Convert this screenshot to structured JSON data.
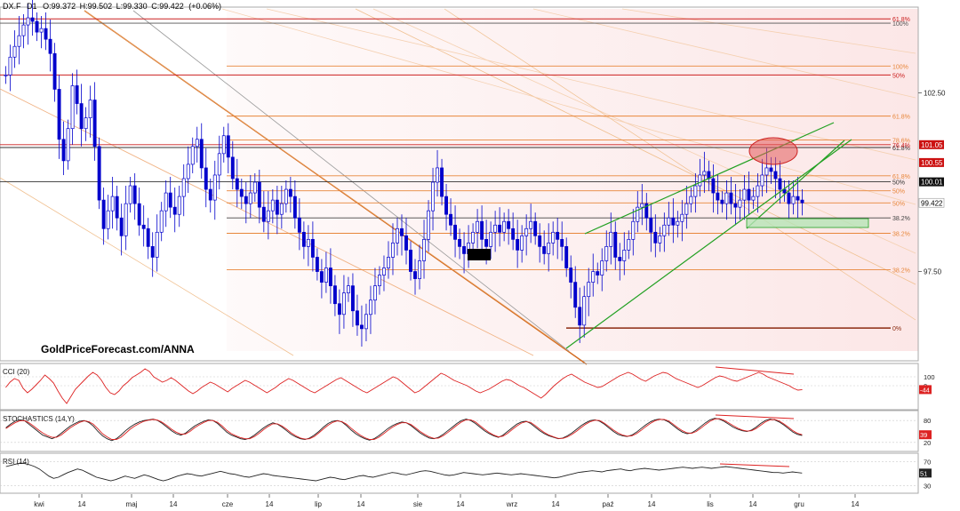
{
  "header": {
    "symbol": "DX.F",
    "interval": "D1",
    "open": "O:99.372",
    "high": "H:99.502",
    "low": "L:99.330",
    "close": "C:99.422",
    "change": "(+0.06%)"
  },
  "watermark": "GoldPriceForecast.com/ANNA",
  "colors": {
    "up": "#0000cc",
    "down": "#0000cc",
    "fib": "#e8863a",
    "resistance": "#cc2020",
    "channel": "#22a022",
    "cci": "#dd2222",
    "stoch_k": "#222222",
    "stoch_d": "#dd2222",
    "rsi": "#222222"
  },
  "chart_data": [
    {
      "type": "candlestick",
      "y_ticks": [
        "102.50",
        "97.50"
      ],
      "y_range": [
        95.3,
        104.8
      ],
      "x_tick_labels": [
        "kwi",
        "14",
        "maj",
        "14",
        "cze",
        "14",
        "lip",
        "14",
        "sie",
        "14",
        "wrz",
        "14",
        "paź",
        "14",
        "lis",
        "14",
        "gru",
        "14"
      ],
      "close_series": [
        103.0,
        103.5,
        103.8,
        104.1,
        104.4,
        104.6,
        104.5,
        104.2,
        104.3,
        104.0,
        103.6,
        102.6,
        101.2,
        100.6,
        101.5,
        102.7,
        102.2,
        101.5,
        101.8,
        102.3,
        101.0,
        99.5,
        98.7,
        99.2,
        99.6,
        99.0,
        98.5,
        99.4,
        99.9,
        99.4,
        98.8,
        98.7,
        98.2,
        97.9,
        98.6,
        99.2,
        99.7,
        99.3,
        99.1,
        99.6,
        100.1,
        100.5,
        101.0,
        101.2,
        100.4,
        99.8,
        99.5,
        100.2,
        100.8,
        101.3,
        100.7,
        100.1,
        99.8,
        99.6,
        99.4,
        99.7,
        100.0,
        99.3,
        98.9,
        99.2,
        99.5,
        99.1,
        99.4,
        99.8,
        99.6,
        99.0,
        98.6,
        98.2,
        98.4,
        97.9,
        97.5,
        97.2,
        97.6,
        97.1,
        96.6,
        96.3,
        96.9,
        97.1,
        96.4,
        96.0,
        95.9,
        96.3,
        96.7,
        97.1,
        97.4,
        97.6,
        97.9,
        98.3,
        98.7,
        98.5,
        98.1,
        97.5,
        97.3,
        97.8,
        98.4,
        99.2,
        100.0,
        100.4,
        99.6,
        99.1,
        98.8,
        98.4,
        98.2,
        98.0,
        98.3,
        98.6,
        98.9,
        98.4,
        98.2,
        98.6,
        98.8,
        98.6,
        98.9,
        98.7,
        98.4,
        98.1,
        98.5,
        98.7,
        98.9,
        98.5,
        98.2,
        98.0,
        98.3,
        98.6,
        98.4,
        98.2,
        97.6,
        97.2,
        96.5,
        96.0,
        96.8,
        97.2,
        97.5,
        97.4,
        97.8,
        98.2,
        98.6,
        97.9,
        97.8,
        98.1,
        98.4,
        98.9,
        99.3,
        99.4,
        99.0,
        98.6,
        98.3,
        98.5,
        98.8,
        99.0,
        98.8,
        98.9,
        99.1,
        99.4,
        99.6,
        99.9,
        100.2,
        100.3,
        100.1,
        99.7,
        99.5,
        99.4,
        99.7,
        99.4,
        99.3,
        99.5,
        99.8,
        99.5,
        99.6,
        99.9,
        100.2,
        100.4,
        100.3,
        100.1,
        99.8,
        99.7,
        99.4,
        99.6,
        99.5,
        99.422
      ],
      "horizontal_levels": [
        {
          "label": "100%",
          "value": 104.45,
          "color": "#555555"
        },
        {
          "label": "61.8%",
          "value": 104.57,
          "color": "#cc2020"
        },
        {
          "label": "100%",
          "value": 103.25,
          "color": "#e8863a"
        },
        {
          "label": "50%",
          "value": 103.0,
          "color": "#cc2020"
        },
        {
          "label": "61.8%",
          "value": 101.85,
          "color": "#e8863a"
        },
        {
          "label": "78.6%",
          "value": 101.18,
          "color": "#e8863a"
        },
        {
          "label": "61.8%",
          "value": 100.97,
          "color": "#333333"
        },
        {
          "label": "76.4%",
          "value": 101.05,
          "color": "#cc2020"
        },
        {
          "label": "61.8%",
          "value": 100.18,
          "color": "#e8863a"
        },
        {
          "label": "50%",
          "value": 100.01,
          "color": "#333333"
        },
        {
          "label": "50%",
          "value": 99.76,
          "color": "#e8863a"
        },
        {
          "label": "50%",
          "value": 99.42,
          "color": "#e8863a"
        },
        {
          "label": "38.2%",
          "value": 99.0,
          "color": "#444444"
        },
        {
          "label": "38.2%",
          "value": 98.57,
          "color": "#e8863a"
        },
        {
          "label": "38.2%",
          "value": 97.55,
          "color": "#e8863a"
        },
        {
          "label": "0%",
          "value": 95.92,
          "color": "#8b2a10"
        }
      ],
      "price_tags": [
        {
          "label": "101.05",
          "value": 101.05,
          "bg": "#cc1111"
        },
        {
          "label": "100.55",
          "value": 100.55,
          "bg": "#cc1111"
        },
        {
          "label": "100.01",
          "value": 100.01,
          "bg": "#111111"
        },
        {
          "label": "99.422",
          "value": 99.422,
          "bg": "#ffffff"
        }
      ]
    },
    {
      "type": "line",
      "title": "CCI (20)",
      "y_ticks": [
        "100",
        "0"
      ],
      "last_value": "-44",
      "y_range": [
        -250,
        220
      ],
      "values": [
        -20,
        40,
        80,
        60,
        -30,
        -80,
        -40,
        10,
        60,
        120,
        80,
        30,
        -60,
        -140,
        -200,
        -120,
        -40,
        10,
        60,
        110,
        150,
        120,
        60,
        -20,
        -80,
        -100,
        -60,
        0,
        40,
        90,
        120,
        150,
        190,
        160,
        100,
        70,
        40,
        60,
        90,
        60,
        20,
        -20,
        -60,
        -90,
        -60,
        -20,
        10,
        40,
        20,
        -10,
        -40,
        -70,
        -30,
        0,
        30,
        60,
        40,
        10,
        -20,
        -50,
        -80,
        -50,
        -20,
        20,
        50,
        80,
        60,
        30,
        0,
        -30,
        -60,
        -80,
        -50,
        -20,
        10,
        40,
        70,
        90,
        60,
        30,
        0,
        -30,
        -60,
        -80,
        -50,
        -20,
        10,
        40,
        70,
        100,
        80,
        40,
        0,
        -40,
        -80,
        -60,
        -20,
        20,
        60,
        100,
        140,
        120,
        90,
        60,
        40,
        20,
        0,
        -30,
        -60,
        -80,
        -60,
        -40,
        -10,
        20,
        50,
        70,
        60,
        30,
        0,
        -20,
        -50,
        -80,
        -110,
        -140,
        -100,
        -50,
        0,
        40,
        80,
        110,
        130,
        100,
        70,
        40,
        20,
        0,
        -20,
        -10,
        20,
        50,
        80,
        110,
        130,
        150,
        130,
        100,
        70,
        50,
        80,
        110,
        130,
        150,
        140,
        110,
        80,
        60,
        40,
        20,
        0,
        -20,
        0,
        30,
        60,
        90,
        110,
        100,
        80,
        60,
        50,
        70,
        90,
        110,
        130,
        150,
        130,
        100,
        80,
        60,
        40,
        20,
        0,
        -30,
        -50,
        -44
      ]
    },
    {
      "type": "line",
      "title": "STOCHASTICS (14,Y)",
      "y_ticks": [
        "80",
        "20"
      ],
      "last_value": "39",
      "y_range": [
        0,
        100
      ],
      "k": [
        60,
        70,
        78,
        82,
        80,
        70,
        60,
        50,
        40,
        35,
        30,
        35,
        45,
        55,
        65,
        72,
        78,
        80,
        75,
        65,
        50,
        38,
        30,
        25,
        30,
        40,
        52,
        62,
        70,
        76,
        80,
        82,
        84,
        80,
        72,
        62,
        52,
        44,
        40,
        45,
        55,
        65,
        72,
        78,
        82,
        80,
        72,
        60,
        48,
        40,
        35,
        30,
        28,
        32,
        40,
        50,
        60,
        68,
        74,
        70,
        62,
        52,
        42,
        35,
        30,
        28,
        32,
        40,
        50,
        62,
        72,
        78,
        80,
        76,
        66,
        54,
        44,
        36,
        30,
        26,
        30,
        38,
        48,
        58,
        66,
        72,
        76,
        74,
        66,
        56,
        46,
        38,
        32,
        30,
        34,
        42,
        52,
        62,
        72,
        80,
        84,
        80,
        72,
        62,
        52,
        44,
        38,
        34,
        40,
        50,
        60,
        70,
        76,
        78,
        72,
        62,
        52,
        44,
        38,
        34,
        30,
        32,
        38,
        46,
        56,
        66,
        74,
        80,
        82,
        78,
        70,
        60,
        50,
        42,
        38,
        36,
        40,
        48,
        58,
        68,
        76,
        82,
        84,
        82,
        76,
        66,
        56,
        48,
        44,
        46,
        54,
        64,
        74,
        82,
        86,
        84,
        78,
        70,
        62,
        56,
        52,
        50,
        54,
        62,
        72,
        80,
        84,
        82,
        76,
        68,
        58,
        48,
        42,
        39
      ],
      "d": [
        58,
        66,
        74,
        79,
        80,
        74,
        65,
        55,
        46,
        39,
        34,
        34,
        40,
        50,
        60,
        68,
        75,
        79,
        77,
        70,
        57,
        44,
        35,
        28,
        28,
        34,
        45,
        56,
        65,
        72,
        78,
        81,
        83,
        81,
        75,
        66,
        56,
        48,
        43,
        43,
        50,
        60,
        68,
        75,
        80,
        80,
        75,
        65,
        53,
        44,
        38,
        33,
        30,
        30,
        36,
        45,
        55,
        64,
        71,
        71,
        65,
        56,
        46,
        38,
        32,
        29,
        30,
        36,
        46,
        57,
        67,
        75,
        79,
        77,
        70,
        59,
        49,
        40,
        33,
        28,
        28,
        34,
        43,
        53,
        62,
        69,
        74,
        74,
        69,
        60,
        50,
        42,
        35,
        31,
        32,
        38,
        47,
        57,
        67,
        76,
        82,
        82,
        76,
        66,
        56,
        47,
        40,
        35,
        37,
        45,
        55,
        65,
        73,
        77,
        75,
        66,
        56,
        47,
        40,
        35,
        31,
        31,
        35,
        42,
        51,
        61,
        70,
        77,
        81,
        80,
        73,
        64,
        54,
        46,
        40,
        37,
        38,
        44,
        53,
        63,
        72,
        79,
        83,
        83,
        79,
        70,
        60,
        52,
        46,
        45,
        50,
        59,
        69,
        78,
        84,
        85,
        81,
        74,
        66,
        59,
        54,
        51,
        52,
        58,
        67,
        76,
        82,
        83,
        79,
        71,
        62,
        52,
        45,
        41
      ]
    },
    {
      "type": "line",
      "title": "RSI (14)",
      "y_ticks": [
        "70",
        "30"
      ],
      "last_value": "51",
      "y_range": [
        20,
        80
      ],
      "values": [
        62,
        64,
        66,
        68,
        67,
        65,
        62,
        58,
        52,
        46,
        42,
        44,
        48,
        52,
        55,
        58,
        56,
        52,
        48,
        44,
        42,
        40,
        38,
        40,
        43,
        46,
        44,
        42,
        45,
        48,
        46,
        43,
        40,
        38,
        40,
        43,
        46,
        48,
        50,
        49,
        47,
        46,
        48,
        50,
        52,
        54,
        52,
        50,
        49,
        47,
        45,
        44,
        46,
        48,
        50,
        49,
        47,
        46,
        45,
        44,
        43,
        42,
        41,
        40,
        39,
        38,
        40,
        42,
        44,
        43,
        41,
        40,
        42,
        44,
        46,
        47,
        45,
        44,
        46,
        48,
        50,
        52,
        51,
        49,
        48,
        50,
        52,
        54,
        55,
        54,
        52,
        50,
        48,
        47,
        48,
        50,
        52,
        51,
        50,
        49,
        48,
        49,
        50,
        51,
        50,
        49,
        48,
        49,
        50,
        49,
        48,
        47,
        46,
        45,
        44,
        43,
        44,
        46,
        48,
        50,
        52,
        53,
        54,
        55,
        54,
        53,
        55,
        56,
        57,
        58,
        56,
        55,
        57,
        58,
        59,
        58,
        57,
        56,
        57,
        58,
        59,
        60,
        61,
        60,
        59,
        60,
        61,
        60,
        59,
        60,
        61,
        62,
        61,
        60,
        59,
        58,
        57,
        56,
        55,
        54,
        53,
        52,
        52,
        51,
        52,
        53,
        52,
        51
      ]
    }
  ]
}
